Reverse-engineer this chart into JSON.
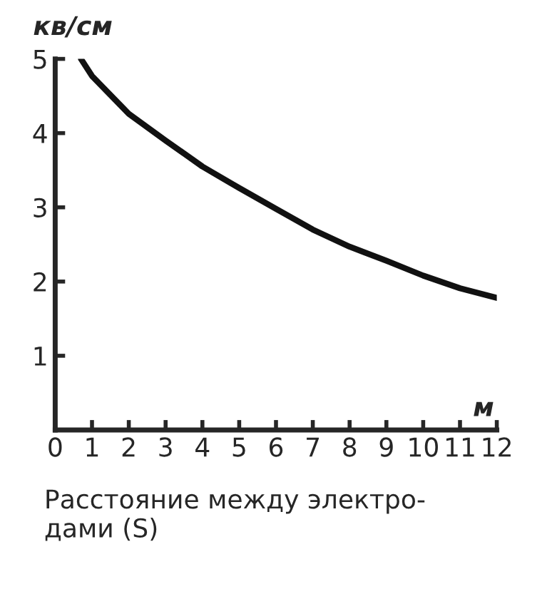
{
  "chart_data": {
    "type": "line",
    "ylabel": "кв/см",
    "xlabel": "м",
    "annotations": [
      "Расстояние между электро-\nдами (S)"
    ],
    "series": [
      {
        "color": "#111111",
        "x": [
          0.7,
          1,
          2,
          3,
          4,
          5,
          6,
          7,
          8,
          9,
          10,
          11,
          12
        ],
        "values": [
          5.0,
          4.77,
          4.26,
          3.9,
          3.55,
          3.26,
          2.98,
          2.7,
          2.47,
          2.28,
          2.08,
          1.91,
          1.78
        ]
      }
    ],
    "xlim": [
      0,
      12
    ],
    "ylim": [
      0,
      5
    ],
    "xticks": [
      0,
      1,
      2,
      3,
      4,
      5,
      6,
      7,
      8,
      9,
      10,
      11,
      12
    ],
    "yticks": [
      {
        "value": 0,
        "label": null
      },
      1,
      2,
      3,
      4,
      5
    ],
    "grid": false,
    "legend": false,
    "marker": "none",
    "line_style": "solid"
  }
}
